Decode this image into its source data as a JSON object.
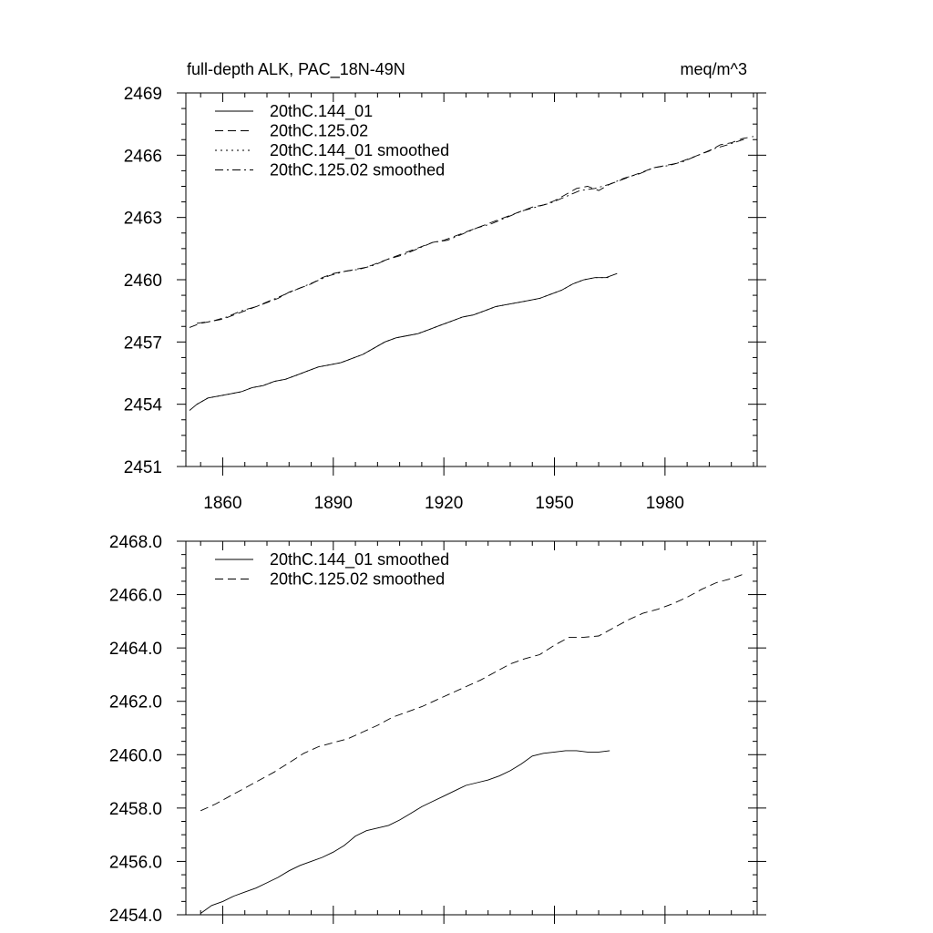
{
  "chart_data": [
    {
      "type": "line",
      "title": "full-depth ALK, PAC_18N-49N",
      "subtitle": "meq/m^3",
      "xlabel": "",
      "ylabel": "",
      "xlim": [
        1850,
        2005
      ],
      "ylim": [
        2451,
        2469
      ],
      "x_ticks": [
        1860,
        1890,
        1920,
        1950,
        1980
      ],
      "y_ticks": [
        2451,
        2454,
        2457,
        2460,
        2463,
        2466,
        2469
      ],
      "y_tick_labels": [
        "2451",
        "2454",
        "2457",
        "2460",
        "2463",
        "2466",
        "2469"
      ],
      "x_tick_labels": [
        "1860",
        "1890",
        "1920",
        "1950",
        "1980"
      ],
      "legend": "top-left",
      "grid": false,
      "series": [
        {
          "name": "20thC.144_01",
          "dash": "solid",
          "x": [
            1851,
            1853,
            1856,
            1859,
            1862,
            1865,
            1868,
            1871,
            1874,
            1877,
            1880,
            1883,
            1886,
            1889,
            1892,
            1895,
            1898,
            1901,
            1904,
            1907,
            1910,
            1913,
            1916,
            1919,
            1922,
            1925,
            1928,
            1931,
            1934,
            1937,
            1940,
            1943,
            1946,
            1949,
            1952,
            1955,
            1958,
            1961,
            1964,
            1967
          ],
          "y": [
            2453.7,
            2454.0,
            2454.3,
            2454.4,
            2454.5,
            2454.6,
            2454.8,
            2454.9,
            2455.1,
            2455.2,
            2455.4,
            2455.6,
            2455.8,
            2455.9,
            2456.0,
            2456.2,
            2456.4,
            2456.7,
            2457.0,
            2457.2,
            2457.3,
            2457.4,
            2457.6,
            2457.8,
            2458.0,
            2458.2,
            2458.3,
            2458.5,
            2458.7,
            2458.8,
            2458.9,
            2459.0,
            2459.1,
            2459.3,
            2459.5,
            2459.8,
            2460.0,
            2460.1,
            2460.1,
            2460.3
          ]
        },
        {
          "name": "20thC.125.02",
          "dash": "dashed",
          "x": [
            1851,
            1854,
            1857,
            1860,
            1863,
            1866,
            1869,
            1872,
            1875,
            1878,
            1881,
            1884,
            1887,
            1890,
            1893,
            1896,
            1899,
            1902,
            1905,
            1908,
            1911,
            1914,
            1917,
            1920,
            1923,
            1926,
            1929,
            1932,
            1935,
            1938,
            1941,
            1944,
            1947,
            1950,
            1953,
            1956,
            1959,
            1962,
            1965,
            1968,
            1971,
            1974,
            1977,
            1980,
            1983,
            1986,
            1989,
            1992,
            1995,
            1998,
            2001,
            2004
          ],
          "y": [
            2457.7,
            2457.9,
            2458.0,
            2458.1,
            2458.3,
            2458.5,
            2458.7,
            2458.9,
            2459.1,
            2459.4,
            2459.6,
            2459.8,
            2460.1,
            2460.3,
            2460.4,
            2460.5,
            2460.6,
            2460.8,
            2461.0,
            2461.2,
            2461.4,
            2461.6,
            2461.8,
            2461.9,
            2462.1,
            2462.3,
            2462.5,
            2462.7,
            2462.9,
            2463.1,
            2463.3,
            2463.5,
            2463.6,
            2463.8,
            2464.1,
            2464.4,
            2464.5,
            2464.3,
            2464.6,
            2464.8,
            2465.0,
            2465.2,
            2465.4,
            2465.5,
            2465.6,
            2465.8,
            2466.0,
            2466.2,
            2466.5,
            2466.6,
            2466.8,
            2466.9
          ]
        },
        {
          "name": "20thC.144_01 smoothed",
          "dash": "dotted",
          "x": [
            1853,
            1856,
            1859,
            1862,
            1865,
            1868,
            1871,
            1874,
            1877,
            1880,
            1883,
            1886,
            1889,
            1892,
            1895,
            1898,
            1901,
            1904,
            1907,
            1910,
            1913,
            1916,
            1919,
            1922,
            1925,
            1928,
            1931,
            1934,
            1937,
            1940,
            1943,
            1946,
            1949,
            1952,
            1955,
            1958,
            1961,
            1965
          ],
          "y": [
            2454.0,
            2454.3,
            2454.4,
            2454.5,
            2454.6,
            2454.8,
            2454.9,
            2455.1,
            2455.2,
            2455.4,
            2455.6,
            2455.8,
            2455.9,
            2456.0,
            2456.2,
            2456.4,
            2456.7,
            2457.0,
            2457.2,
            2457.3,
            2457.4,
            2457.6,
            2457.8,
            2458.0,
            2458.2,
            2458.3,
            2458.5,
            2458.7,
            2458.8,
            2458.9,
            2459.0,
            2459.1,
            2459.3,
            2459.5,
            2459.8,
            2460.0,
            2460.1,
            2460.1
          ]
        },
        {
          "name": "20thC.125.02 smoothed",
          "dash": "dashdot",
          "x": [
            1853,
            1857,
            1861,
            1865,
            1869,
            1873,
            1877,
            1881,
            1885,
            1889,
            1893,
            1897,
            1901,
            1905,
            1909,
            1913,
            1917,
            1921,
            1925,
            1929,
            1933,
            1937,
            1941,
            1945,
            1949,
            1953,
            1957,
            1961,
            1965,
            1969,
            1973,
            1977,
            1981,
            1985,
            1989,
            1993,
            1997,
            2002
          ],
          "y": [
            2457.9,
            2458.0,
            2458.2,
            2458.5,
            2458.7,
            2459.0,
            2459.3,
            2459.6,
            2459.9,
            2460.2,
            2460.4,
            2460.5,
            2460.7,
            2461.0,
            2461.2,
            2461.5,
            2461.8,
            2461.9,
            2462.2,
            2462.5,
            2462.7,
            2463.0,
            2463.3,
            2463.5,
            2463.7,
            2464.0,
            2464.3,
            2464.4,
            2464.6,
            2464.9,
            2465.1,
            2465.4,
            2465.5,
            2465.7,
            2466.0,
            2466.3,
            2466.5,
            2466.8
          ]
        }
      ]
    },
    {
      "type": "line",
      "title": "",
      "xlabel": "",
      "ylabel": "",
      "xlim": [
        1850,
        2005
      ],
      "ylim": [
        2454,
        2468
      ],
      "x_ticks": [
        1860,
        1890,
        1920,
        1950,
        1980
      ],
      "x_tick_labels": [],
      "y_ticks": [
        2454,
        2456,
        2458,
        2460,
        2462,
        2464,
        2466,
        2468
      ],
      "y_tick_labels": [
        "2454.0",
        "2456.0",
        "2458.0",
        "2460.0",
        "2462.0",
        "2464.0",
        "2466.0",
        "2468.0"
      ],
      "legend": "top-left",
      "grid": false,
      "series": [
        {
          "name": "20thC.144_01 smoothed",
          "dash": "solid",
          "x": [
            1854,
            1857,
            1860,
            1863,
            1866,
            1869,
            1872,
            1875,
            1878,
            1881,
            1884,
            1887,
            1890,
            1893,
            1896,
            1899,
            1902,
            1905,
            1908,
            1911,
            1914,
            1917,
            1920,
            1923,
            1926,
            1929,
            1932,
            1935,
            1938,
            1941,
            1944,
            1947,
            1950,
            1953,
            1956,
            1959,
            1962,
            1965
          ],
          "y": [
            2454.05,
            2454.35,
            2454.5,
            2454.7,
            2454.85,
            2455.0,
            2455.2,
            2455.4,
            2455.65,
            2455.85,
            2456.0,
            2456.15,
            2456.35,
            2456.6,
            2456.95,
            2457.15,
            2457.25,
            2457.35,
            2457.55,
            2457.8,
            2458.05,
            2458.25,
            2458.45,
            2458.65,
            2458.85,
            2458.95,
            2459.05,
            2459.2,
            2459.4,
            2459.65,
            2459.95,
            2460.05,
            2460.1,
            2460.15,
            2460.15,
            2460.1,
            2460.1,
            2460.15
          ]
        },
        {
          "name": "20thC.125.02 smoothed",
          "dash": "dashed",
          "x": [
            1854,
            1858,
            1862,
            1866,
            1870,
            1874,
            1878,
            1882,
            1886,
            1890,
            1894,
            1898,
            1902,
            1906,
            1910,
            1914,
            1918,
            1922,
            1926,
            1930,
            1934,
            1938,
            1942,
            1946,
            1950,
            1954,
            1958,
            1962,
            1966,
            1970,
            1974,
            1978,
            1982,
            1986,
            1990,
            1994,
            1998,
            2002
          ],
          "y": [
            2457.9,
            2458.15,
            2458.45,
            2458.75,
            2459.05,
            2459.35,
            2459.7,
            2460.05,
            2460.3,
            2460.45,
            2460.6,
            2460.85,
            2461.1,
            2461.4,
            2461.6,
            2461.8,
            2462.05,
            2462.3,
            2462.55,
            2462.8,
            2463.1,
            2463.4,
            2463.6,
            2463.75,
            2464.1,
            2464.4,
            2464.4,
            2464.45,
            2464.75,
            2465.05,
            2465.3,
            2465.45,
            2465.65,
            2465.9,
            2466.2,
            2466.45,
            2466.6,
            2466.8
          ]
        }
      ]
    }
  ]
}
